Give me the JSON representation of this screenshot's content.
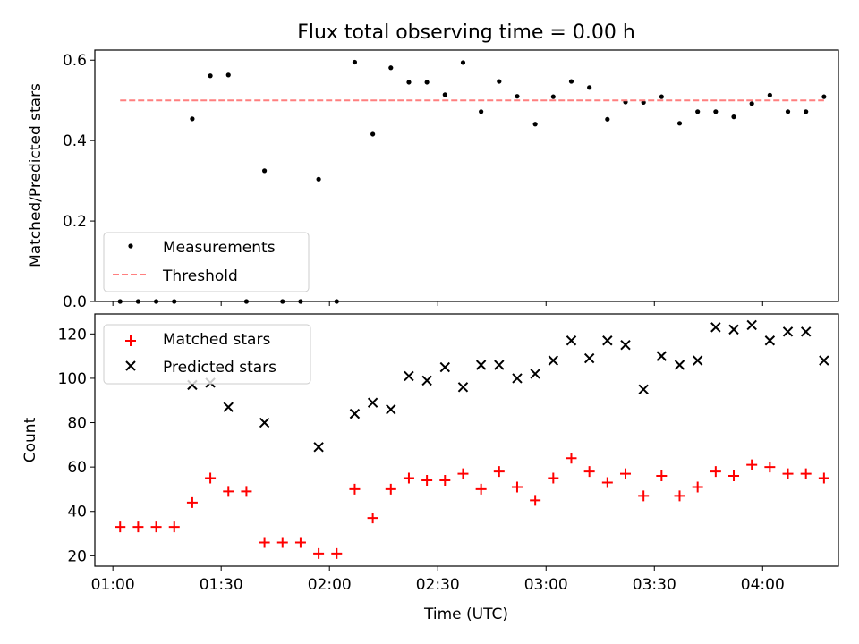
{
  "title": "Flux total observing time = 0.00 h",
  "chart_data": [
    {
      "type": "scatter",
      "panel": "top",
      "ylabel": "Matched/Predicted stars",
      "xlim": [
        "00:55",
        "04:21"
      ],
      "ylim": [
        0,
        0.625
      ],
      "yticks": [
        "0.0",
        "0.2",
        "0.4",
        "0.6"
      ],
      "series": [
        {
          "name": "Measurements",
          "marker": "dot",
          "color": "#000000",
          "x": [
            "01:02",
            "01:07",
            "01:12",
            "01:17",
            "01:22",
            "01:27",
            "01:32",
            "01:37",
            "01:42",
            "01:47",
            "01:52",
            "01:57",
            "02:02",
            "02:07",
            "02:12",
            "02:17",
            "02:22",
            "02:27",
            "02:32",
            "02:37",
            "02:42",
            "02:47",
            "02:52",
            "02:57",
            "03:02",
            "03:07",
            "03:12",
            "03:17",
            "03:22",
            "03:27",
            "03:32",
            "03:37",
            "03:42",
            "03:47",
            "03:52",
            "03:57",
            "04:02",
            "04:07",
            "04:12",
            "04:17"
          ],
          "y": [
            0,
            0,
            0,
            0,
            0.454,
            0.561,
            0.563,
            0,
            0.325,
            0,
            0,
            0.304,
            0,
            0.595,
            0.416,
            0.581,
            0.545,
            0.545,
            0.514,
            0.594,
            0.472,
            0.547,
            0.51,
            0.441,
            0.509,
            0.547,
            0.532,
            0.453,
            0.496,
            0.495,
            0.509,
            0.443,
            0.472,
            0.472,
            0.459,
            0.492,
            0.513,
            0.472,
            0.472,
            0.509
          ]
        },
        {
          "name": "Threshold",
          "style": "dashed",
          "color": "#ff7f7f",
          "x": [
            "01:02",
            "04:17"
          ],
          "y": [
            0.5,
            0.5
          ]
        }
      ],
      "legend": "lower-left"
    },
    {
      "type": "scatter",
      "panel": "bottom",
      "xlabel": "Time (UTC)",
      "ylabel": "Count",
      "xlim": [
        "00:55",
        "04:21"
      ],
      "ylim": [
        15.3,
        129
      ],
      "xticks": [
        "01:00",
        "01:30",
        "02:00",
        "02:30",
        "03:00",
        "03:30",
        "04:00"
      ],
      "yticks": [
        "20",
        "40",
        "60",
        "80",
        "100",
        "120"
      ],
      "series": [
        {
          "name": "Matched stars",
          "marker": "plus",
          "color": "#ff0000",
          "x": [
            "01:02",
            "01:07",
            "01:12",
            "01:17",
            "01:22",
            "01:27",
            "01:32",
            "01:37",
            "01:42",
            "01:47",
            "01:52",
            "01:57",
            "02:02",
            "02:07",
            "02:12",
            "02:17",
            "02:22",
            "02:27",
            "02:32",
            "02:37",
            "02:42",
            "02:47",
            "02:52",
            "02:57",
            "03:02",
            "03:07",
            "03:12",
            "03:17",
            "03:22",
            "03:27",
            "03:32",
            "03:37",
            "03:42",
            "03:47",
            "03:52",
            "03:57",
            "04:02",
            "04:07",
            "04:12",
            "04:17"
          ],
          "y": [
            33,
            33,
            33,
            33,
            44,
            55,
            49,
            49,
            26,
            26,
            26,
            21,
            21,
            50,
            37,
            50,
            55,
            54,
            54,
            57,
            50,
            58,
            51,
            45,
            55,
            64,
            58,
            53,
            57,
            47,
            56,
            47,
            51,
            58,
            56,
            61,
            60,
            57,
            57,
            55
          ]
        },
        {
          "name": "Predicted stars",
          "marker": "x",
          "color": "#000000",
          "x": [
            "01:22",
            "01:27",
            "01:32",
            "01:42",
            "01:57",
            "02:07",
            "02:12",
            "02:17",
            "02:22",
            "02:27",
            "02:32",
            "02:37",
            "02:42",
            "02:47",
            "02:52",
            "02:57",
            "03:02",
            "03:07",
            "03:12",
            "03:17",
            "03:22",
            "03:27",
            "03:32",
            "03:37",
            "03:42",
            "03:47",
            "03:52",
            "03:57",
            "04:02",
            "04:07",
            "04:12",
            "04:17"
          ],
          "y": [
            97,
            98,
            87,
            80,
            69,
            84,
            89,
            86,
            101,
            99,
            105,
            96,
            106,
            106,
            100,
            102,
            108,
            117,
            109,
            117,
            115,
            95,
            110,
            106,
            108,
            123,
            122,
            124,
            117,
            121,
            121,
            108
          ]
        }
      ],
      "legend": "upper-left"
    }
  ]
}
